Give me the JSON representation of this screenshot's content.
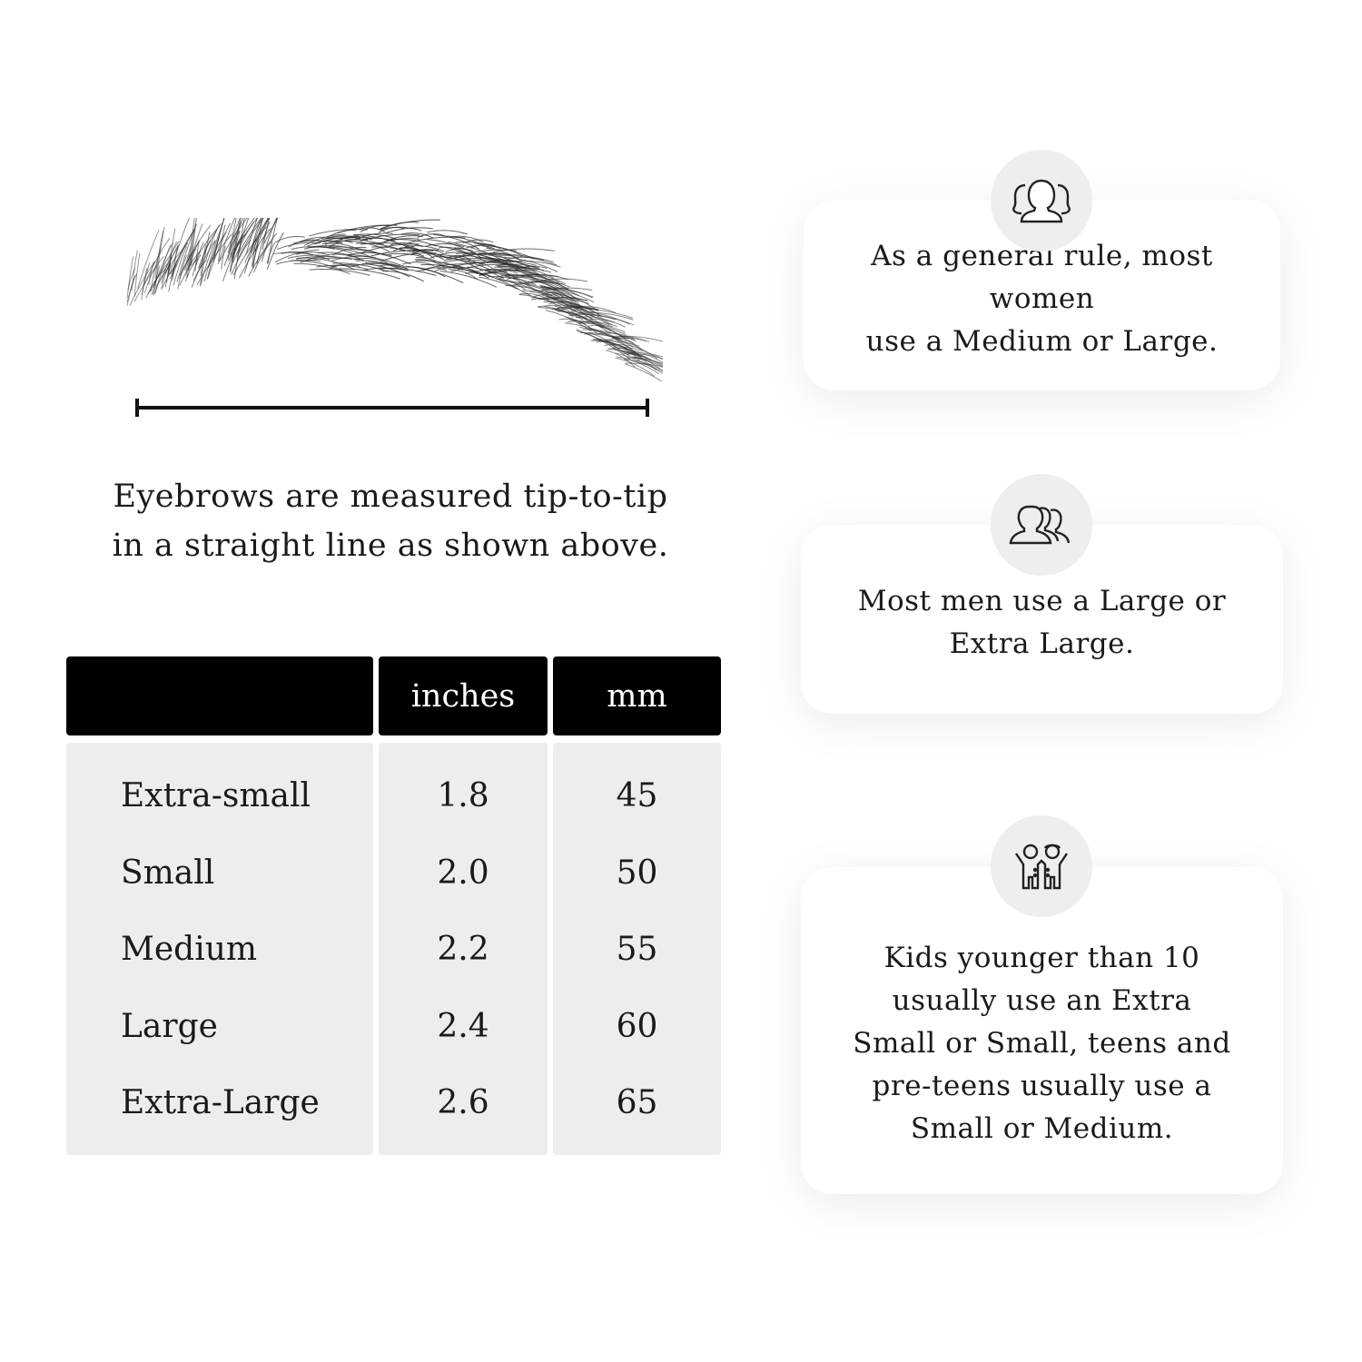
{
  "measure_caption": {
    "line1": "Eyebrows are measured tip-to-tip",
    "line2": "in a straight line as shown above."
  },
  "size_table": {
    "headers": [
      "",
      "inches",
      "mm"
    ],
    "rows": [
      {
        "size": "Extra-small",
        "inches": "1.8",
        "mm": "45"
      },
      {
        "size": "Small",
        "inches": "2.0",
        "mm": "50"
      },
      {
        "size": "Medium",
        "inches": "2.2",
        "mm": "55"
      },
      {
        "size": "Large",
        "inches": "2.4",
        "mm": "60"
      },
      {
        "size": "Extra-Large",
        "inches": "2.6",
        "mm": "65"
      }
    ]
  },
  "tips": [
    {
      "icon": "women-group-icon",
      "lines": [
        "As a general rule, most women",
        "use a Medium or Large."
      ]
    },
    {
      "icon": "men-group-icon",
      "lines": [
        "Most men use a Large or",
        "Extra Large."
      ]
    },
    {
      "icon": "kids-icon",
      "lines": [
        "Kids younger than 10",
        "usually use an Extra",
        "Small or Small, teens and",
        "pre-teens usually use a",
        "Small or Medium."
      ]
    }
  ],
  "colors": {
    "header_bg": "#000000",
    "cell_bg": "#ededed",
    "badge_bg": "#eeeeee"
  }
}
